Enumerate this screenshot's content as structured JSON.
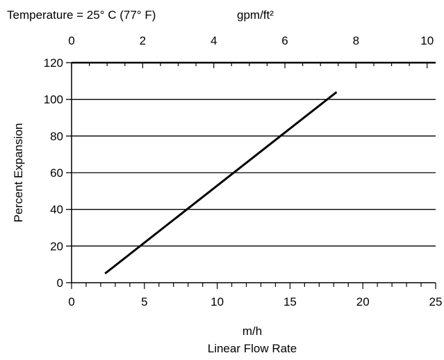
{
  "chart_data": {
    "type": "line",
    "title": "Temperature = 25° C (77° F)",
    "x_axis": {
      "ticks": [
        0,
        5,
        10,
        15,
        20,
        25
      ],
      "range": [
        0,
        25
      ],
      "unit_label": "m/h",
      "label": "Linear Flow Rate"
    },
    "top_axis": {
      "unit_label": "gpm/ft²",
      "ticks": [
        0,
        2,
        4,
        6,
        8,
        10
      ],
      "range": [
        0,
        10.24
      ]
    },
    "y_axis": {
      "label": "Percent Expansion",
      "ticks": [
        0,
        20,
        40,
        60,
        80,
        100,
        120
      ],
      "range": [
        0,
        120
      ]
    },
    "grid": "horizontal",
    "series": [
      {
        "x": [
          2.3,
          18.2
        ],
        "y": [
          5,
          104
        ]
      }
    ]
  }
}
